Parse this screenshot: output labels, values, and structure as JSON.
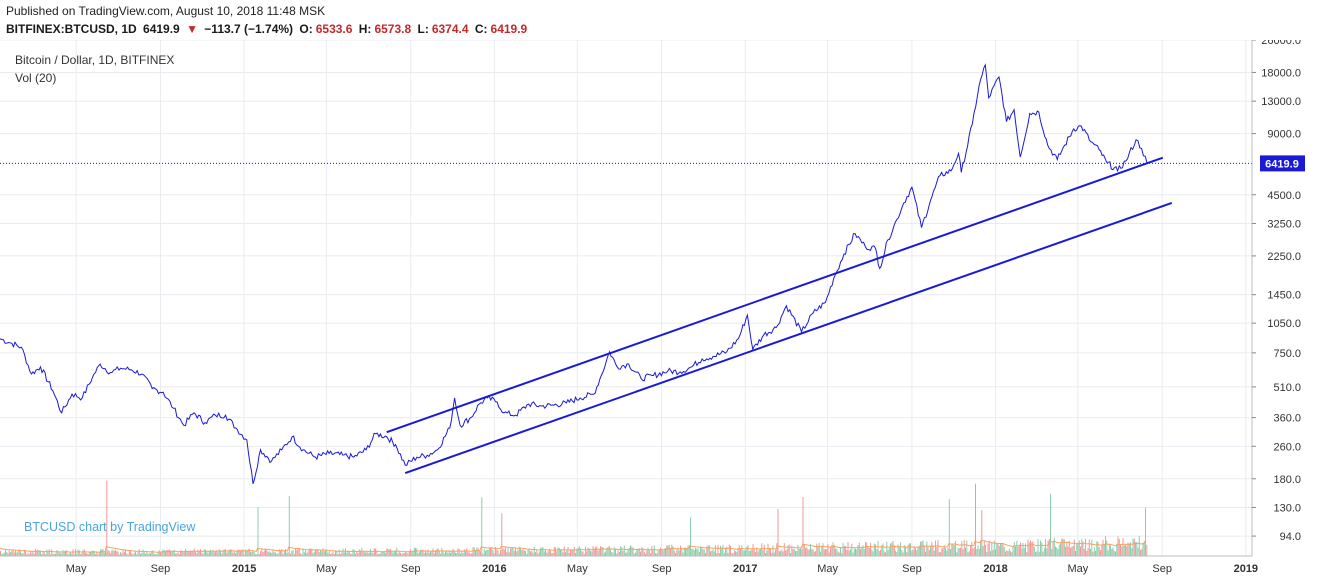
{
  "header": {
    "published": "Published on TradingView.com, August 10, 2018 11:48 MSK",
    "symbol": "BITFINEX:BTCUSD, 1D",
    "price": "6419.9",
    "change_arrow": "▼",
    "change": "−113.7 (−1.74%)",
    "open_label": "O:",
    "open": "6533.6",
    "high_label": "H:",
    "high": "6573.8",
    "low_label": "L:",
    "low": "6374.4",
    "close_label": "C:",
    "close": "6419.9"
  },
  "chart": {
    "title": "Bitcoin / Dollar, 1D, BITFINEX",
    "volume_label": "Vol (20)",
    "watermark": "BTCUSD chart by TradingView",
    "last_price_label": "6419.9"
  },
  "colors": {
    "price_line": "#1a1ad6",
    "channel": "#1a1ad6",
    "vol_up": "#7fc9a3",
    "vol_down": "#ef8f8f",
    "vol_ma": "#f4a261",
    "last_price_bg": "#1a1ad6",
    "grid": "#e8ecf0"
  },
  "chart_data": {
    "type": "line",
    "y_scale": "log",
    "ylim": [
      75,
      26000
    ],
    "y_ticks": [
      26000,
      18000,
      13000,
      9000,
      6419.9,
      4500,
      3250,
      2250,
      1450,
      1050,
      750,
      510,
      360,
      260,
      180,
      130,
      94
    ],
    "y_tick_labels": [
      "26000.0",
      "18000.0",
      "13000.0",
      "9000.0",
      "",
      "4500.0",
      "3250.0",
      "2250.0",
      "1450.0",
      "1050.0",
      "750.0",
      "510.0",
      "360.0",
      "260.0",
      "180.0",
      "130.0",
      "94.0"
    ],
    "x_ticks": [
      {
        "date": "2014-05-01",
        "label": "May"
      },
      {
        "date": "2014-09-01",
        "label": "Sep"
      },
      {
        "date": "2015-01-01",
        "label": "2015"
      },
      {
        "date": "2015-05-01",
        "label": "May"
      },
      {
        "date": "2015-09-01",
        "label": "Sep"
      },
      {
        "date": "2016-01-01",
        "label": "2016"
      },
      {
        "date": "2016-05-01",
        "label": "May"
      },
      {
        "date": "2016-09-01",
        "label": "Sep"
      },
      {
        "date": "2017-01-01",
        "label": "2017"
      },
      {
        "date": "2017-05-01",
        "label": "May"
      },
      {
        "date": "2017-09-01",
        "label": "Sep"
      },
      {
        "date": "2018-01-01",
        "label": "2018"
      },
      {
        "date": "2018-05-01",
        "label": "May"
      },
      {
        "date": "2018-09-01",
        "label": "Sep"
      },
      {
        "date": "2019-01-01",
        "label": "2019"
      }
    ],
    "xlim": [
      "2014-01-10",
      "2019-01-10"
    ],
    "series": [
      {
        "points": [
          [
            "2014-01-10",
            880
          ],
          [
            "2014-01-25",
            840
          ],
          [
            "2014-02-10",
            800
          ],
          [
            "2014-02-25",
            590
          ],
          [
            "2014-03-10",
            640
          ],
          [
            "2014-03-28",
            490
          ],
          [
            "2014-04-10",
            380
          ],
          [
            "2014-04-25",
            470
          ],
          [
            "2014-05-10",
            450
          ],
          [
            "2014-05-25",
            570
          ],
          [
            "2014-06-05",
            660
          ],
          [
            "2014-06-20",
            600
          ],
          [
            "2014-07-05",
            630
          ],
          [
            "2014-07-20",
            620
          ],
          [
            "2014-08-05",
            590
          ],
          [
            "2014-08-20",
            500
          ],
          [
            "2014-09-05",
            480
          ],
          [
            "2014-09-20",
            400
          ],
          [
            "2014-10-05",
            330
          ],
          [
            "2014-10-20",
            380
          ],
          [
            "2014-11-05",
            340
          ],
          [
            "2014-11-20",
            370
          ],
          [
            "2014-12-05",
            370
          ],
          [
            "2014-12-20",
            320
          ],
          [
            "2015-01-05",
            280
          ],
          [
            "2015-01-14",
            170
          ],
          [
            "2015-01-25",
            250
          ],
          [
            "2015-02-10",
            220
          ],
          [
            "2015-02-25",
            250
          ],
          [
            "2015-03-12",
            290
          ],
          [
            "2015-03-28",
            250
          ],
          [
            "2015-04-15",
            230
          ],
          [
            "2015-05-05",
            240
          ],
          [
            "2015-05-25",
            235
          ],
          [
            "2015-06-10",
            230
          ],
          [
            "2015-06-28",
            250
          ],
          [
            "2015-07-12",
            300
          ],
          [
            "2015-07-28",
            290
          ],
          [
            "2015-08-10",
            265
          ],
          [
            "2015-08-24",
            210
          ],
          [
            "2015-09-10",
            230
          ],
          [
            "2015-09-25",
            235
          ],
          [
            "2015-10-10",
            250
          ],
          [
            "2015-10-28",
            320
          ],
          [
            "2015-11-04",
            450
          ],
          [
            "2015-11-12",
            330
          ],
          [
            "2015-11-28",
            360
          ],
          [
            "2015-12-10",
            420
          ],
          [
            "2015-12-22",
            450
          ],
          [
            "2016-01-05",
            430
          ],
          [
            "2016-01-15",
            380
          ],
          [
            "2016-02-01",
            370
          ],
          [
            "2016-02-20",
            420
          ],
          [
            "2016-03-10",
            410
          ],
          [
            "2016-03-28",
            415
          ],
          [
            "2016-04-15",
            425
          ],
          [
            "2016-05-05",
            450
          ],
          [
            "2016-05-25",
            470
          ],
          [
            "2016-06-05",
            580
          ],
          [
            "2016-06-17",
            760
          ],
          [
            "2016-06-28",
            640
          ],
          [
            "2016-07-15",
            660
          ],
          [
            "2016-08-02",
            560
          ],
          [
            "2016-08-20",
            580
          ],
          [
            "2016-09-10",
            610
          ],
          [
            "2016-09-28",
            605
          ],
          [
            "2016-10-15",
            640
          ],
          [
            "2016-10-30",
            700
          ],
          [
            "2016-11-15",
            720
          ],
          [
            "2016-12-05",
            760
          ],
          [
            "2016-12-22",
            880
          ],
          [
            "2017-01-04",
            1150
          ],
          [
            "2017-01-12",
            780
          ],
          [
            "2017-01-28",
            920
          ],
          [
            "2017-02-15",
            1000
          ],
          [
            "2017-03-02",
            1280
          ],
          [
            "2017-03-24",
            950
          ],
          [
            "2017-04-10",
            1180
          ],
          [
            "2017-04-28",
            1330
          ],
          [
            "2017-05-10",
            1750
          ],
          [
            "2017-05-25",
            2300
          ],
          [
            "2017-06-10",
            2900
          ],
          [
            "2017-06-25",
            2500
          ],
          [
            "2017-07-10",
            2450
          ],
          [
            "2017-07-16",
            1950
          ],
          [
            "2017-07-28",
            2700
          ],
          [
            "2017-08-10",
            3400
          ],
          [
            "2017-08-20",
            4100
          ],
          [
            "2017-09-01",
            4900
          ],
          [
            "2017-09-15",
            3100
          ],
          [
            "2017-09-28",
            4200
          ],
          [
            "2017-10-12",
            5600
          ],
          [
            "2017-10-28",
            5900
          ],
          [
            "2017-11-08",
            7200
          ],
          [
            "2017-11-12",
            5800
          ],
          [
            "2017-11-28",
            10000
          ],
          [
            "2017-12-08",
            15500
          ],
          [
            "2017-12-17",
            19600
          ],
          [
            "2017-12-22",
            13500
          ],
          [
            "2018-01-06",
            17100
          ],
          [
            "2018-01-17",
            10300
          ],
          [
            "2018-01-28",
            11800
          ],
          [
            "2018-02-06",
            6900
          ],
          [
            "2018-02-20",
            11300
          ],
          [
            "2018-03-05",
            11500
          ],
          [
            "2018-03-18",
            7900
          ],
          [
            "2018-04-01",
            6700
          ],
          [
            "2018-04-12",
            7900
          ],
          [
            "2018-04-25",
            9500
          ],
          [
            "2018-05-06",
            9800
          ],
          [
            "2018-05-20",
            8200
          ],
          [
            "2018-06-01",
            7500
          ],
          [
            "2018-06-12",
            6500
          ],
          [
            "2018-06-28",
            5900
          ],
          [
            "2018-07-10",
            6600
          ],
          [
            "2018-07-25",
            8400
          ],
          [
            "2018-08-02",
            7600
          ],
          [
            "2018-08-10",
            6419.9
          ]
        ]
      }
    ],
    "channel_lines": [
      {
        "from": [
          "2015-07-28",
          305
        ],
        "to": [
          "2018-09-02",
          6850
        ]
      },
      {
        "from": [
          "2015-08-24",
          192
        ],
        "to": [
          "2018-09-15",
          4100
        ]
      }
    ],
    "last_price": 6419.9
  }
}
